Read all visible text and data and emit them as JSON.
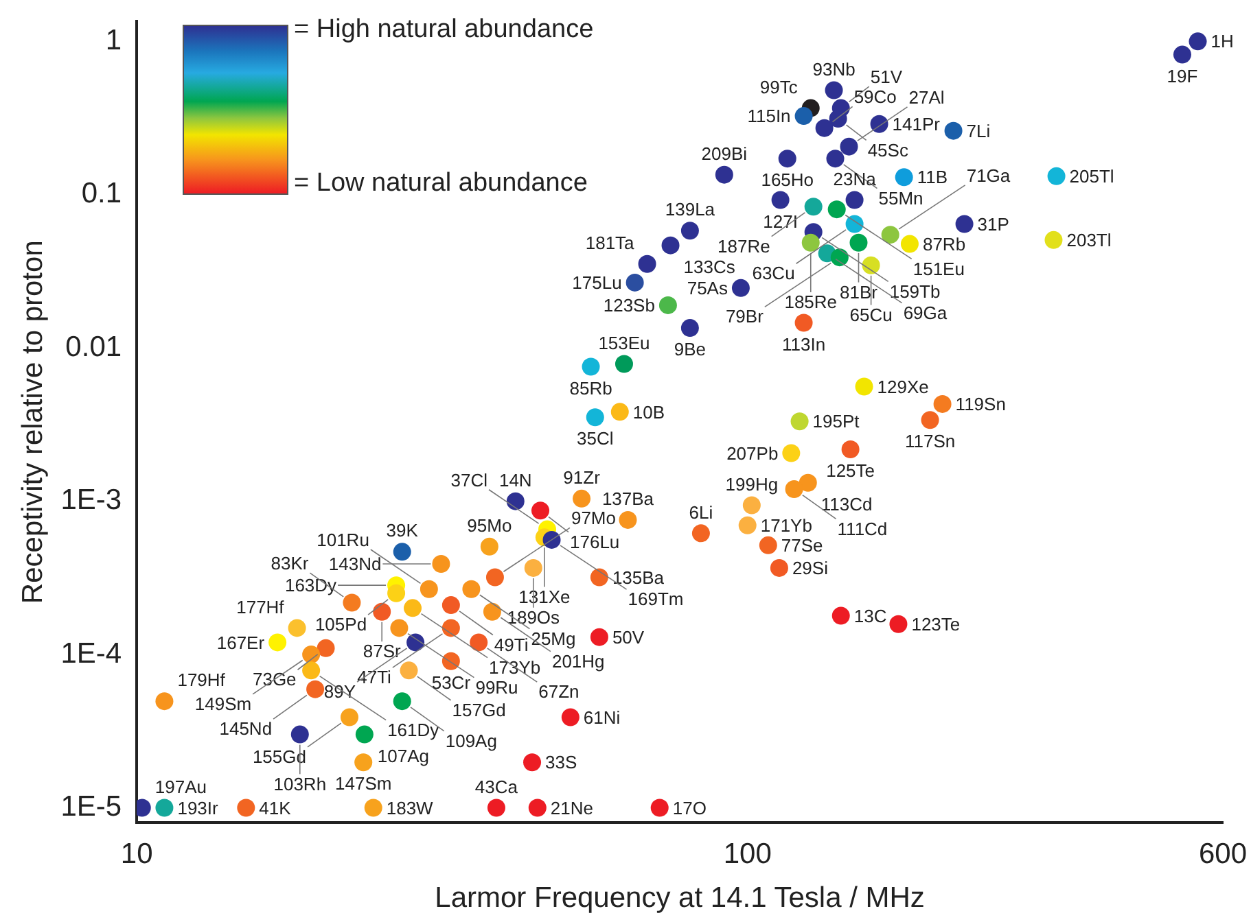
{
  "chart_data": {
    "type": "scatter",
    "xlabel": "Larmor Frequency at 14.1 Tesla / MHz",
    "ylabel": "Receptivity relative to proton",
    "log": "xy",
    "grid": false,
    "legend": false,
    "marker": "circle",
    "xlim": [
      10,
      600
    ],
    "xticks": [
      10,
      100,
      600
    ],
    "ylim": [
      8e-06,
      1.35
    ],
    "yticks": [
      1,
      0.1,
      0.01,
      {
        "value": 0.001,
        "label": "1E-3"
      },
      {
        "value": 0.0001,
        "label": "1E-4"
      },
      {
        "value": 1e-05,
        "label": "1E-5"
      }
    ],
    "x": [
      546,
      515,
      138.5,
      126.9,
      142.2,
      123.6,
      140.7,
      133.6,
      164.3,
      217.3,
      146.6,
      116.2,
      139.2,
      91.6,
      180.4,
      320.4,
      113.2,
      128.2,
      140,
      149.7,
      226.5,
      317,
      149.7,
      128.2,
      126.9,
      171.3,
      184.3,
      152,
      135,
      141.5,
      159.3,
      80.5,
      74.8,
      68.5,
      65.4,
      97.5,
      74.1,
      80.5,
      123.6,
      62.8,
      55.4,
      155.2,
      208.5,
      199,
      61.8,
      56.3,
      121.7,
      147.4,
      117.9,
      125.6,
      119.2,
      101.6,
      100,
      83.9,
      108.1,
      112.7,
      142.2,
      176.6,
      63.7,
      57.2,
      57.2,
      53.5,
      41.7,
      45.8,
      47,
      46.5,
      47.8,
      27.2,
      37.8,
      31.5,
      44.6,
      38.6,
      26.6,
      26.6,
      30.1,
      35.3,
      22.5,
      25.2,
      28.3,
      32.7,
      38.2,
      18.3,
      26.9,
      32.7,
      17,
      28.6,
      36.3,
      20.4,
      19.3,
      19.3,
      27.9,
      32.7,
      19.6,
      27.2,
      11.1,
      22.3,
      51.3,
      18.5,
      23.6,
      23.5,
      44.4,
      10.2,
      11.1,
      15.1,
      24.4,
      38.8,
      45.3,
      71.8
    ],
    "values": [
      1,
      0.82,
      0.48,
      0.367,
      0.367,
      0.326,
      0.313,
      0.272,
      0.289,
      0.261,
      0.206,
      0.172,
      0.172,
      0.135,
      0.13,
      0.132,
      0.0923,
      0.0835,
      0.0802,
      0.0923,
      0.0644,
      0.0506,
      0.0644,
      0.0571,
      0.0486,
      0.0548,
      0.0477,
      0.0486,
      0.0414,
      0.039,
      0.0346,
      0.0582,
      0.0467,
      0.0353,
      0.0267,
      0.0246,
      0.019,
      0.0135,
      0.0146,
      0.00787,
      0.00755,
      0.0056,
      0.00431,
      0.00339,
      0.00383,
      0.00353,
      0.00332,
      0.00218,
      0.00206,
      0.00132,
      0.0012,
      0.000942,
      0.000697,
      0.000618,
      0.000516,
      0.000367,
      0.000179,
      0.000158,
      0.000755,
      0.000319,
      0.00013,
      0.00104,
      0.001,
      0.000869,
      0.000656,
      0.000582,
      0.00056,
      0.000468,
      0.000506,
      0.00039,
      0.000367,
      0.000319,
      0.000283,
      0.000251,
      0.000267,
      0.000267,
      0.000218,
      0.00019,
      0.000201,
      0.00021,
      0.00019,
      0.000149,
      0.000149,
      0.000149,
      0.00012,
      0.00012,
      0.00012,
      0.00011,
      0.0001,
      7.87e-05,
      7.87e-05,
      9.05e-05,
      5.94e-05,
      4.96e-05,
      4.96e-05,
      3.9e-05,
      3.9e-05,
      3.01e-05,
      3.01e-05,
      1.98e-05,
      1.98e-05,
      1e-05,
      1e-05,
      1e-05,
      1e-05,
      1e-05,
      1e-05,
      1e-05
    ],
    "colors": [
      "#2e3192",
      "#2e3192",
      "#2e3192",
      "#231f20",
      "#2e3192",
      "#1b5faa",
      "#2e3192",
      "#2e3192",
      "#2e3192",
      "#1b5faa",
      "#2e3192",
      "#2e3192",
      "#2e3192",
      "#2e3192",
      "#0f9ddc",
      "#13b5d8",
      "#2e3192",
      "#14a89a",
      "#00a651",
      "#2e3192",
      "#2e3192",
      "#e2e01b",
      "#13b5d8",
      "#2e3192",
      "#8dc63f",
      "#8dc63f",
      "#f2e500",
      "#00a651",
      "#14a89a",
      "#00a651",
      "#d7df23",
      "#2e3192",
      "#2e3192",
      "#2e3192",
      "#2b4ea0",
      "#2e3192",
      "#4cb84a",
      "#2e3192",
      "#f15a24",
      "#009a5a",
      "#13b5d8",
      "#f2e500",
      "#f47b20",
      "#f26522",
      "#fbb917",
      "#13b5d8",
      "#bfd730",
      "#f15a24",
      "#fcd116",
      "#f7941d",
      "#f7941d",
      "#fbb040",
      "#fbb040",
      "#f26522",
      "#f26522",
      "#f15a24",
      "#ed1c24",
      "#ed1c24",
      "#f7941d",
      "#f26522",
      "#ed1c24",
      "#f7941d",
      "#2e3192",
      "#ed1c24",
      "#fff200",
      "#fcd116",
      "#2e3192",
      "#1b5faa",
      "#f7a21d",
      "#f7941d",
      "#fbb040",
      "#f26522",
      "#fff200",
      "#fcd116",
      "#f7941d",
      "#f7941d",
      "#f47b20",
      "#f15a24",
      "#fbb917",
      "#f15a24",
      "#f7941d",
      "#fbc02d",
      "#f7941d",
      "#f26522",
      "#fff200",
      "#2e3192",
      "#f15a24",
      "#f26522",
      "#f7941d",
      "#fbb917",
      "#fbb040",
      "#f26522",
      "#f26522",
      "#00a651",
      "#f7941d",
      "#f7a21d",
      "#ed1c24",
      "#2e3192",
      "#00a651",
      "#f7a21d",
      "#ed1c24",
      "#2e3192",
      "#14a89a",
      "#f26522",
      "#f7a21d",
      "#ed1c24",
      "#ed1c24",
      "#ed1c24"
    ],
    "annotations": [
      "= High natural abundance",
      "= Low natural abundance",
      {
        "text": "1H",
        "x": 546,
        "y": 1
      },
      {
        "text": "19F",
        "x": 515,
        "y": 0.82
      },
      {
        "text": "93Nb",
        "x": 138.5,
        "y": 0.48
      },
      {
        "text": "99Tc",
        "x": 126.9,
        "y": 0.367
      },
      {
        "text": "51V",
        "x": 142.2,
        "y": 0.367
      },
      {
        "text": "115In",
        "x": 123.6,
        "y": 0.326
      },
      {
        "text": "45Sc",
        "x": 140.7,
        "y": 0.313
      },
      {
        "text": "59Co",
        "x": 133.6,
        "y": 0.272
      },
      {
        "text": "141Pr",
        "x": 164.3,
        "y": 0.289
      },
      {
        "text": "7Li",
        "x": 217.3,
        "y": 0.261
      },
      {
        "text": "27Al",
        "x": 146.6,
        "y": 0.206
      },
      {
        "text": "165Ho",
        "x": 116.2,
        "y": 0.172
      },
      {
        "text": "55Mn",
        "x": 139.2,
        "y": 0.172
      },
      {
        "text": "209Bi",
        "x": 91.6,
        "y": 0.135
      },
      {
        "text": "11B",
        "x": 180.4,
        "y": 0.13
      },
      {
        "text": "205Tl",
        "x": 320.4,
        "y": 0.132
      },
      {
        "text": "127I",
        "x": 113.2,
        "y": 0.0923
      },
      {
        "text": "187Re",
        "x": 128.2,
        "y": 0.0835
      },
      {
        "text": "151Eu",
        "x": 140,
        "y": 0.0802
      },
      {
        "text": "23Na",
        "x": 149.7,
        "y": 0.0923
      },
      {
        "text": "31P",
        "x": 226.5,
        "y": 0.0644
      },
      {
        "text": "203Tl",
        "x": 317,
        "y": 0.0506
      },
      {
        "text": "63Cu",
        "x": 149.7,
        "y": 0.0644
      },
      {
        "text": "159Tb",
        "x": 128.2,
        "y": 0.0571
      },
      {
        "text": "185Re",
        "x": 126.9,
        "y": 0.0486
      },
      {
        "text": "71Ga",
        "x": 171.3,
        "y": 0.0548
      },
      {
        "text": "87Rb",
        "x": 184.3,
        "y": 0.0477
      },
      {
        "text": "81Br",
        "x": 152,
        "y": 0.0486
      },
      {
        "text": "69Ga",
        "x": 135,
        "y": 0.0414
      },
      {
        "text": "79Br",
        "x": 141.5,
        "y": 0.039
      },
      {
        "text": "65Cu",
        "x": 159.3,
        "y": 0.0346
      },
      {
        "text": "139La",
        "x": 80.5,
        "y": 0.0582
      },
      {
        "text": "133Cs",
        "x": 74.8,
        "y": 0.0467
      },
      {
        "text": "181Ta",
        "x": 68.5,
        "y": 0.0353
      },
      {
        "text": "175Lu",
        "x": 65.4,
        "y": 0.0267
      },
      {
        "text": "75As",
        "x": 97.5,
        "y": 0.0246
      },
      {
        "text": "123Sb",
        "x": 74.1,
        "y": 0.019
      },
      {
        "text": "9Be",
        "x": 80.5,
        "y": 0.0135
      },
      {
        "text": "113In",
        "x": 123.6,
        "y": 0.0146
      },
      {
        "text": "153Eu",
        "x": 62.8,
        "y": 0.00787
      },
      {
        "text": "85Rb",
        "x": 55.4,
        "y": 0.00755
      },
      {
        "text": "129Xe",
        "x": 155.2,
        "y": 0.0056
      },
      {
        "text": "119Sn",
        "x": 208.5,
        "y": 0.00431
      },
      {
        "text": "117Sn",
        "x": 199,
        "y": 0.00339
      },
      {
        "text": "10B",
        "x": 61.8,
        "y": 0.00383
      },
      {
        "text": "35Cl",
        "x": 56.3,
        "y": 0.00353
      },
      {
        "text": "195Pt",
        "x": 121.7,
        "y": 0.00332
      },
      {
        "text": "125Te",
        "x": 147.4,
        "y": 0.00218
      },
      {
        "text": "207Pb",
        "x": 117.9,
        "y": 0.00206
      },
      {
        "text": "113Cd",
        "x": 125.6,
        "y": 0.00132
      },
      {
        "text": "111Cd",
        "x": 119.2,
        "y": 0.0012
      },
      {
        "text": "199Hg",
        "x": 101.6,
        "y": 0.000942
      },
      {
        "text": "171Yb",
        "x": 100,
        "y": 0.000697
      },
      {
        "text": "6Li",
        "x": 83.9,
        "y": 0.000618
      },
      {
        "text": "77Se",
        "x": 108.1,
        "y": 0.000516
      },
      {
        "text": "29Si",
        "x": 112.7,
        "y": 0.000367
      },
      {
        "text": "13C",
        "x": 142.2,
        "y": 0.000179
      },
      {
        "text": "123Te",
        "x": 176.6,
        "y": 0.000158
      },
      {
        "text": "137Ba",
        "x": 63.7,
        "y": 0.000755
      },
      {
        "text": "135Ba",
        "x": 57.2,
        "y": 0.000319
      },
      {
        "text": "50V",
        "x": 57.2,
        "y": 0.00013
      },
      {
        "text": "91Zr",
        "x": 53.5,
        "y": 0.00104
      },
      {
        "text": "14N",
        "x": 41.7,
        "y": 0.001
      },
      {
        "text": "176Lu",
        "x": 45.8,
        "y": 0.000869
      },
      {
        "text": "37Cl",
        "x": 47,
        "y": 0.000656
      },
      {
        "text": "131Xe",
        "x": 46.5,
        "y": 0.000582
      },
      {
        "text": "169Tm",
        "x": 47.8,
        "y": 0.00056
      },
      {
        "text": "39K",
        "x": 27.2,
        "y": 0.000468
      },
      {
        "text": "95Mo",
        "x": 37.8,
        "y": 0.000506
      },
      {
        "text": "143Nd",
        "x": 31.5,
        "y": 0.00039
      },
      {
        "text": "189Os",
        "x": 44.6,
        "y": 0.000367
      },
      {
        "text": "97Mo",
        "x": 38.6,
        "y": 0.000319
      },
      {
        "text": "163Dy",
        "x": 26.6,
        "y": 0.000283
      },
      {
        "text": "105Pd",
        "x": 26.6,
        "y": 0.000251
      },
      {
        "text": "101Ru",
        "x": 30.1,
        "y": 0.000267
      },
      {
        "text": "25Mg",
        "x": 35.3,
        "y": 0.000267
      },
      {
        "text": "83Kr",
        "x": 22.5,
        "y": 0.000218
      },
      {
        "text": "87Sr",
        "x": 25.2,
        "y": 0.00019
      },
      {
        "text": "173Yb",
        "x": 28.3,
        "y": 0.000201
      },
      {
        "text": "49Ti",
        "x": 32.7,
        "y": 0.00021
      },
      {
        "text": "201Hg",
        "x": 38.2,
        "y": 0.00019
      },
      {
        "text": "177Hf",
        "x": 18.3,
        "y": 0.000149
      },
      {
        "text": "99Ru",
        "x": 26.9,
        "y": 0.000149
      },
      {
        "text": "47Ti",
        "x": 32.7,
        "y": 0.000149
      },
      {
        "text": "167Er",
        "x": 17,
        "y": 0.00012
      },
      {
        "text": "89Y",
        "x": 28.6,
        "y": 0.00012
      },
      {
        "text": "67Zn",
        "x": 36.3,
        "y": 0.00012
      },
      {
        "text": "73Ge",
        "x": 20.4,
        "y": 0.00011
      },
      {
        "text": "149Sm",
        "x": 19.3,
        "y": 0.0001
      },
      {
        "text": "161Dy",
        "x": 19.3,
        "y": 7.87e-05
      },
      {
        "text": "157Gd",
        "x": 27.9,
        "y": 7.87e-05
      },
      {
        "text": "53Cr",
        "x": 32.7,
        "y": 9.05e-05
      },
      {
        "text": "145Nd",
        "x": 19.6,
        "y": 5.94e-05
      },
      {
        "text": "109Ag",
        "x": 27.2,
        "y": 4.96e-05
      },
      {
        "text": "179Hf",
        "x": 11.1,
        "y": 4.96e-05
      },
      {
        "text": "155Gd",
        "x": 22.3,
        "y": 3.9e-05
      },
      {
        "text": "61Ni",
        "x": 51.3,
        "y": 3.9e-05
      },
      {
        "text": "103Rh",
        "x": 18.5,
        "y": 3.01e-05
      },
      {
        "text": "107Ag",
        "x": 23.6,
        "y": 3.01e-05
      },
      {
        "text": "147Sm",
        "x": 23.5,
        "y": 1.98e-05
      },
      {
        "text": "33S",
        "x": 44.4,
        "y": 1.98e-05
      },
      {
        "text": "197Au",
        "x": 10.2,
        "y": 1e-05
      },
      {
        "text": "193Ir",
        "x": 11.1,
        "y": 1e-05
      },
      {
        "text": "41K",
        "x": 15.1,
        "y": 1e-05
      },
      {
        "text": "183W",
        "x": 24.4,
        "y": 1e-05
      },
      {
        "text": "43Ca",
        "x": 38.8,
        "y": 1e-05
      },
      {
        "text": "21Ne",
        "x": 45.3,
        "y": 1e-05
      },
      {
        "text": "17O",
        "x": 71.8,
        "y": 1e-05
      }
    ]
  }
}
